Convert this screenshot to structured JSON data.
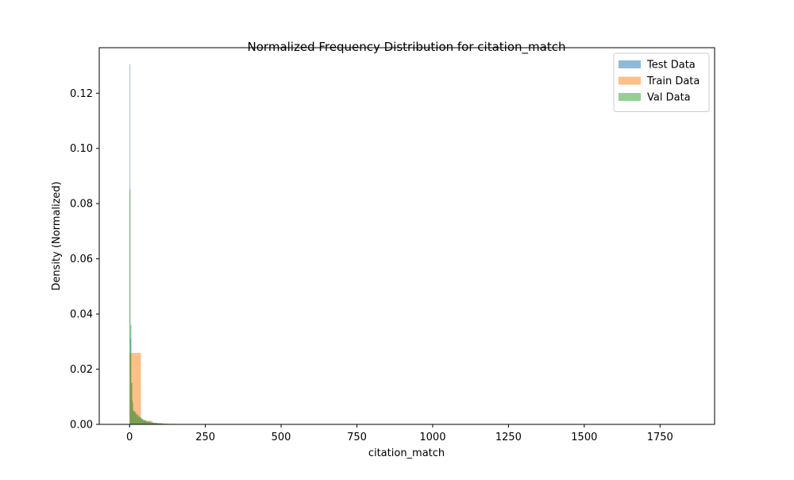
{
  "chart_data": {
    "type": "bar",
    "title": "Normalized Frequency Distribution for citation_match",
    "xlabel": "citation_match",
    "ylabel": "Density (Normalized)",
    "xlim": [
      -100,
      1930
    ],
    "ylim": [
      0,
      0.1365
    ],
    "xticks": [
      0,
      250,
      500,
      750,
      1000,
      1250,
      1500,
      1750
    ],
    "yticks": [
      0.0,
      0.02,
      0.04,
      0.06,
      0.08,
      0.1,
      0.12
    ],
    "ytick_labels": [
      "0.00",
      "0.02",
      "0.04",
      "0.06",
      "0.08",
      "0.10",
      "0.12"
    ],
    "grid": false,
    "legend_position": "top-right",
    "series": [
      {
        "name": "Test Data",
        "color": "#1f77b4",
        "alpha": 0.5,
        "bins": [
          [
            0,
            2.5,
            0.1305
          ],
          [
            2.5,
            5,
            0.031
          ],
          [
            5,
            7.5,
            0.015
          ],
          [
            7.5,
            10,
            0.009
          ],
          [
            10,
            15,
            0.005
          ],
          [
            15,
            20,
            0.0045
          ],
          [
            20,
            25,
            0.004
          ],
          [
            25,
            30,
            0.0035
          ],
          [
            30,
            35,
            0.003
          ],
          [
            35,
            40,
            0.0025
          ],
          [
            40,
            45,
            0.002
          ],
          [
            45,
            55,
            0.0015
          ],
          [
            55,
            70,
            0.001
          ],
          [
            70,
            90,
            0.0006
          ],
          [
            90,
            110,
            0.0004
          ],
          [
            110,
            130,
            0.0002
          ]
        ]
      },
      {
        "name": "Train Data",
        "color": "#ff7f0e",
        "alpha": 0.5,
        "bins": [
          [
            0,
            37.3,
            0.0259
          ],
          [
            37.3,
            74.6,
            0.0013
          ],
          [
            74.6,
            111.9,
            0.0004
          ],
          [
            111.9,
            149.2,
            0.0002
          ]
        ]
      },
      {
        "name": "Val Data",
        "color": "#2ca02c",
        "alpha": 0.5,
        "bins": [
          [
            0,
            3,
            0.0852
          ],
          [
            3,
            6,
            0.036
          ],
          [
            6,
            9,
            0.015
          ],
          [
            9,
            12,
            0.008
          ],
          [
            12,
            16,
            0.005
          ],
          [
            16,
            20,
            0.0045
          ],
          [
            20,
            25,
            0.0035
          ],
          [
            25,
            30,
            0.003
          ],
          [
            30,
            36,
            0.0025
          ],
          [
            36,
            44,
            0.002
          ],
          [
            44,
            54,
            0.0015
          ],
          [
            54,
            66,
            0.001
          ],
          [
            66,
            80,
            0.0007
          ],
          [
            80,
            100,
            0.0004
          ],
          [
            100,
            125,
            0.0002
          ]
        ]
      }
    ]
  }
}
